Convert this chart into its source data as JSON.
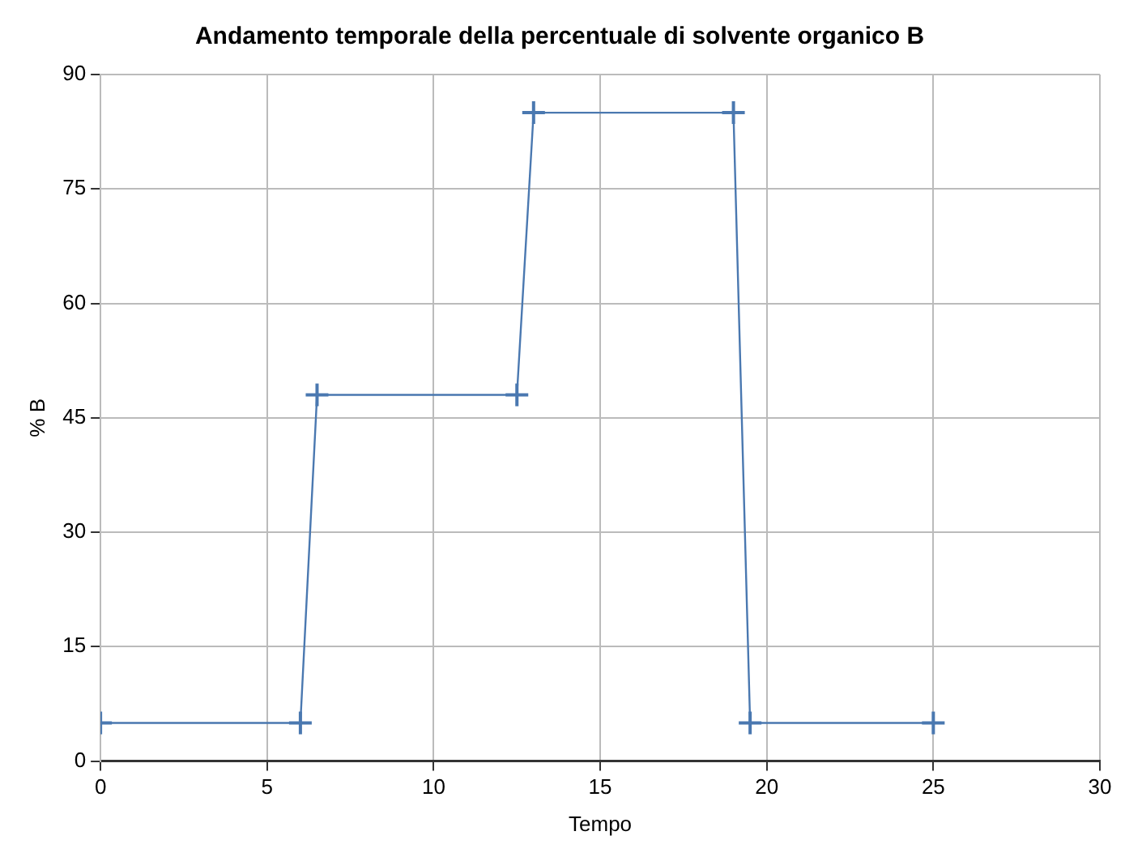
{
  "chart_data": {
    "type": "line",
    "title": "Andamento temporale della percentuale di solvente organico B",
    "xlabel": "Tempo",
    "ylabel": "% B",
    "x": [
      0,
      6,
      6.5,
      12.5,
      13,
      19,
      19.5,
      25
    ],
    "series": [
      {
        "color": "#4a78b0",
        "values": [
          5,
          5,
          48,
          48,
          85,
          85,
          5,
          5
        ]
      }
    ],
    "xlim": [
      0,
      30
    ],
    "xticks": [
      0,
      5,
      10,
      15,
      20,
      25,
      30
    ],
    "ylim": [
      0,
      90
    ],
    "yticks": [
      0,
      15,
      30,
      45,
      60,
      75,
      90
    ],
    "grid": true,
    "legend": false,
    "marker": "cross",
    "line_style": "solid"
  }
}
